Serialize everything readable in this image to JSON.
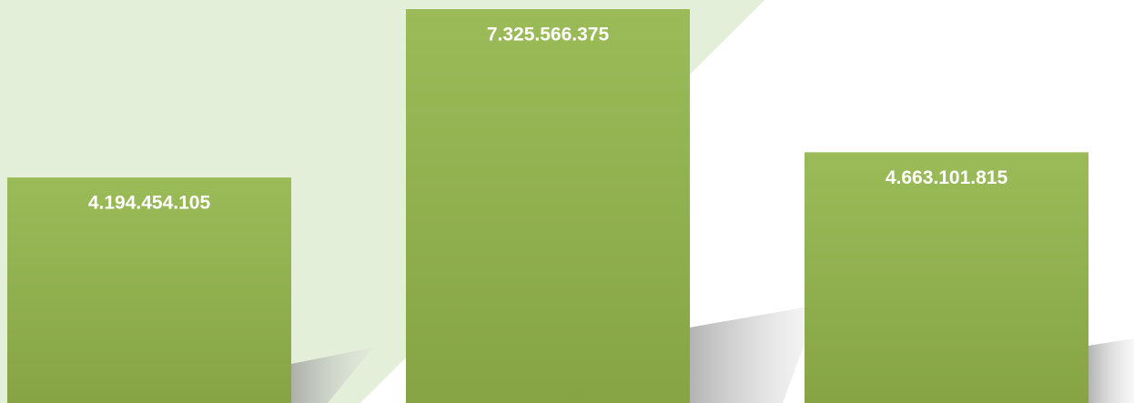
{
  "chart_data": {
    "type": "bar",
    "values": [
      4194454105,
      7325566375,
      4663101815
    ],
    "value_labels": [
      "4.194.454.105",
      "7.325.566.375",
      "4.663.101.815"
    ],
    "color": "#9bbb59"
  }
}
